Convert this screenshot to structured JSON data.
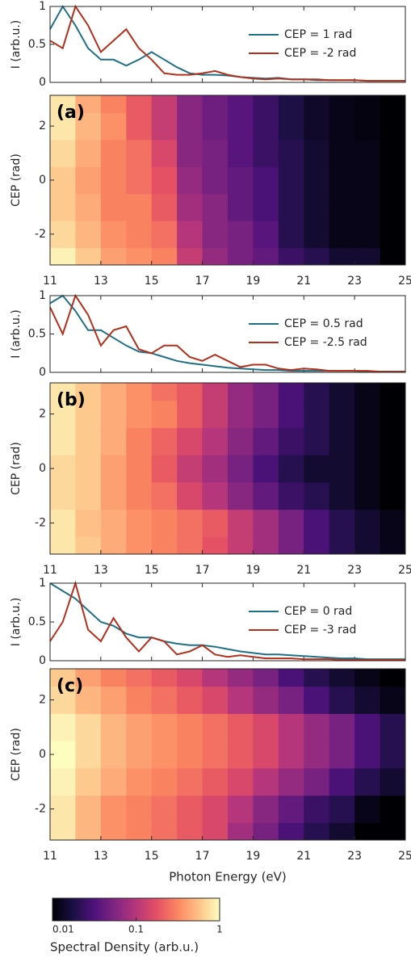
{
  "chart_data": [
    {
      "type": "line",
      "ylabel": "I (arb.u.)",
      "xlim": [
        11,
        25
      ],
      "ylim": [
        0,
        1
      ],
      "yticks": [
        0,
        0.5,
        1
      ],
      "legend": "upper right",
      "x": [
        11,
        11.5,
        12,
        12.5,
        13,
        13.5,
        14,
        14.5,
        15,
        15.5,
        16,
        16.5,
        17,
        17.5,
        18,
        18.5,
        19,
        19.5,
        20,
        20.5,
        21,
        21.5,
        22,
        22.5,
        23,
        23.5,
        24,
        24.5,
        25
      ],
      "series": [
        {
          "name": "CEP = 1 rad",
          "color": "#1f6f86",
          "values": [
            0.7,
            1.0,
            0.75,
            0.45,
            0.3,
            0.3,
            0.22,
            0.3,
            0.4,
            0.3,
            0.2,
            0.12,
            0.1,
            0.1,
            0.09,
            0.07,
            0.06,
            0.05,
            0.06,
            0.04,
            0.04,
            0.03,
            0.03,
            0.03,
            0.03,
            0.02,
            0.02,
            0.02,
            0.02
          ]
        },
        {
          "name": "CEP = -2 rad",
          "color": "#b3301c",
          "values": [
            0.55,
            0.45,
            1.0,
            0.75,
            0.4,
            0.55,
            0.7,
            0.45,
            0.3,
            0.12,
            0.1,
            0.1,
            0.12,
            0.15,
            0.1,
            0.07,
            0.05,
            0.04,
            0.05,
            0.04,
            0.04,
            0.04,
            0.03,
            0.03,
            0.03,
            0.02,
            0.02,
            0.02,
            0.02
          ]
        }
      ]
    },
    {
      "type": "heatmap",
      "label": "(a)",
      "ylabel": "CEP (rad)",
      "xlim": [
        11,
        25
      ],
      "xticks": [
        11,
        13,
        15,
        17,
        19,
        21,
        23,
        25
      ],
      "ylim": [
        -3.14,
        3.14
      ],
      "yticks": [
        -2,
        0,
        2
      ],
      "x": [
        11.5,
        12.5,
        13.5,
        14.5,
        15.5,
        16.5,
        17.5,
        18.5,
        19.5,
        20.5,
        21.5,
        22.5,
        23.5,
        24.5
      ],
      "y": [
        -3,
        -2,
        -1,
        0,
        1,
        2,
        3
      ],
      "z": [
        [
          0.9,
          0.6,
          0.4,
          0.35,
          0.3,
          0.12,
          0.07,
          0.05,
          0.04,
          0.025,
          0.02,
          0.015,
          0.015,
          0.01
        ],
        [
          0.7,
          0.5,
          0.35,
          0.3,
          0.25,
          0.1,
          0.06,
          0.05,
          0.035,
          0.02,
          0.015,
          0.012,
          0.012,
          0.01
        ],
        [
          0.6,
          0.45,
          0.3,
          0.3,
          0.2,
          0.08,
          0.06,
          0.04,
          0.03,
          0.02,
          0.015,
          0.012,
          0.012,
          0.01
        ],
        [
          0.6,
          0.4,
          0.3,
          0.25,
          0.18,
          0.07,
          0.05,
          0.04,
          0.03,
          0.02,
          0.015,
          0.012,
          0.012,
          0.01
        ],
        [
          0.7,
          0.45,
          0.3,
          0.25,
          0.15,
          0.06,
          0.05,
          0.035,
          0.025,
          0.02,
          0.015,
          0.012,
          0.012,
          0.01
        ],
        [
          0.8,
          0.5,
          0.35,
          0.2,
          0.12,
          0.06,
          0.045,
          0.035,
          0.025,
          0.018,
          0.014,
          0.012,
          0.011,
          0.01
        ],
        [
          0.8,
          0.45,
          0.3,
          0.2,
          0.12,
          0.06,
          0.045,
          0.035,
          0.025,
          0.018,
          0.014,
          0.012,
          0.011,
          0.01
        ]
      ]
    },
    {
      "type": "line",
      "ylabel": "I (arb.u.)",
      "xlim": [
        11,
        25
      ],
      "ylim": [
        0,
        1
      ],
      "yticks": [
        0,
        0.5,
        1
      ],
      "legend": "upper right",
      "x": [
        11,
        11.5,
        12,
        12.5,
        13,
        13.5,
        14,
        14.5,
        15,
        15.5,
        16,
        16.5,
        17,
        17.5,
        18,
        18.5,
        19,
        19.5,
        20,
        20.5,
        21,
        21.5,
        22,
        22.5,
        23,
        23.5,
        24,
        24.5,
        25
      ],
      "series": [
        {
          "name": "CEP = 0.5 rad",
          "color": "#1f6f86",
          "values": [
            0.9,
            1.0,
            0.8,
            0.55,
            0.55,
            0.45,
            0.35,
            0.27,
            0.25,
            0.2,
            0.15,
            0.12,
            0.1,
            0.08,
            0.06,
            0.05,
            0.04,
            0.03,
            0.03,
            0.02,
            0.02,
            0.02,
            0.02,
            0.02,
            0.02,
            0.01,
            0.01,
            0.01,
            0.01
          ]
        },
        {
          "name": "CEP = -2.5 rad",
          "color": "#b3301c",
          "values": [
            0.85,
            0.5,
            1.0,
            0.75,
            0.35,
            0.55,
            0.6,
            0.3,
            0.25,
            0.35,
            0.35,
            0.2,
            0.15,
            0.23,
            0.15,
            0.07,
            0.1,
            0.1,
            0.05,
            0.03,
            0.05,
            0.04,
            0.02,
            0.02,
            0.02,
            0.02,
            0.01,
            0.01,
            0.01
          ]
        }
      ]
    },
    {
      "type": "heatmap",
      "label": "(b)",
      "ylabel": "CEP (rad)",
      "xlim": [
        11,
        25
      ],
      "xticks": [
        11,
        13,
        15,
        17,
        19,
        21,
        23,
        25
      ],
      "ylim": [
        -3.14,
        3.14
      ],
      "yticks": [
        -2,
        0,
        2
      ],
      "x": [
        11.5,
        12.5,
        13.5,
        14.5,
        15.5,
        16.5,
        17.5,
        18.5,
        19.5,
        20.5,
        21.5,
        22.5,
        23.5,
        24.5
      ],
      "y": [
        -3,
        -2,
        -1,
        0,
        1,
        2,
        3
      ],
      "z": [
        [
          0.8,
          0.6,
          0.45,
          0.35,
          0.3,
          0.25,
          0.18,
          0.12,
          0.08,
          0.05,
          0.03,
          0.02,
          0.015,
          0.012
        ],
        [
          0.8,
          0.55,
          0.45,
          0.35,
          0.3,
          0.25,
          0.2,
          0.12,
          0.08,
          0.05,
          0.03,
          0.02,
          0.015,
          0.012
        ],
        [
          0.7,
          0.6,
          0.4,
          0.3,
          0.25,
          0.15,
          0.1,
          0.06,
          0.04,
          0.025,
          0.02,
          0.015,
          0.012,
          0.01
        ],
        [
          0.7,
          0.6,
          0.4,
          0.3,
          0.2,
          0.12,
          0.08,
          0.05,
          0.03,
          0.02,
          0.015,
          0.015,
          0.012,
          0.01
        ],
        [
          0.8,
          0.6,
          0.45,
          0.3,
          0.22,
          0.15,
          0.1,
          0.06,
          0.04,
          0.025,
          0.02,
          0.015,
          0.012,
          0.01
        ],
        [
          0.8,
          0.6,
          0.45,
          0.35,
          0.3,
          0.2,
          0.12,
          0.07,
          0.05,
          0.03,
          0.02,
          0.015,
          0.012,
          0.01
        ],
        [
          0.8,
          0.6,
          0.45,
          0.35,
          0.25,
          0.2,
          0.12,
          0.07,
          0.05,
          0.03,
          0.02,
          0.015,
          0.012,
          0.01
        ]
      ]
    },
    {
      "type": "line",
      "ylabel": "I (arb.u.)",
      "xlim": [
        11,
        25
      ],
      "ylim": [
        0,
        1
      ],
      "yticks": [
        0,
        0.5,
        1
      ],
      "legend": "upper right",
      "x": [
        11,
        11.5,
        12,
        12.5,
        13,
        13.5,
        14,
        14.5,
        15,
        15.5,
        16,
        16.5,
        17,
        17.5,
        18,
        18.5,
        19,
        19.5,
        20,
        20.5,
        21,
        21.5,
        22,
        22.5,
        23,
        23.5,
        24,
        24.5,
        25
      ],
      "series": [
        {
          "name": "CEP = 0 rad",
          "color": "#1f6f86",
          "values": [
            1.0,
            0.9,
            0.8,
            0.65,
            0.5,
            0.45,
            0.35,
            0.3,
            0.3,
            0.25,
            0.22,
            0.2,
            0.2,
            0.18,
            0.15,
            0.12,
            0.1,
            0.08,
            0.08,
            0.07,
            0.06,
            0.05,
            0.04,
            0.03,
            0.03,
            0.02,
            0.02,
            0.02,
            0.02
          ]
        },
        {
          "name": "CEP = -3 rad",
          "color": "#b3301c",
          "values": [
            0.25,
            0.5,
            1.0,
            0.4,
            0.25,
            0.55,
            0.3,
            0.12,
            0.3,
            0.25,
            0.08,
            0.12,
            0.2,
            0.08,
            0.05,
            0.07,
            0.05,
            0.03,
            0.03,
            0.03,
            0.02,
            0.02,
            0.02,
            0.01,
            0.01,
            0.01,
            0.01,
            0.01,
            0.01
          ]
        }
      ]
    },
    {
      "type": "heatmap",
      "label": "(c)",
      "ylabel": "CEP (rad)",
      "xlabel": "Photon Energy (eV)",
      "xlim": [
        11,
        25
      ],
      "xticks": [
        11,
        13,
        15,
        17,
        19,
        21,
        23,
        25
      ],
      "ylim": [
        -3.14,
        3.14
      ],
      "yticks": [
        -2,
        0,
        2
      ],
      "x": [
        11.5,
        12.5,
        13.5,
        14.5,
        15.5,
        16.5,
        17.5,
        18.5,
        19.5,
        20.5,
        21.5,
        22.5,
        23.5,
        24.5
      ],
      "y": [
        -3,
        -2,
        -1,
        0,
        1,
        2,
        3
      ],
      "z": [
        [
          0.8,
          0.5,
          0.35,
          0.3,
          0.25,
          0.2,
          0.15,
          0.08,
          0.05,
          0.03,
          0.02,
          0.015,
          0.01,
          0.01
        ],
        [
          0.8,
          0.5,
          0.35,
          0.3,
          0.25,
          0.2,
          0.15,
          0.1,
          0.06,
          0.04,
          0.025,
          0.02,
          0.012,
          0.01
        ],
        [
          0.9,
          0.6,
          0.45,
          0.35,
          0.3,
          0.25,
          0.2,
          0.15,
          0.1,
          0.07,
          0.05,
          0.03,
          0.02,
          0.015
        ],
        [
          1,
          0.7,
          0.5,
          0.4,
          0.35,
          0.3,
          0.25,
          0.2,
          0.15,
          0.1,
          0.07,
          0.05,
          0.03,
          0.02
        ],
        [
          0.9,
          0.7,
          0.5,
          0.4,
          0.35,
          0.3,
          0.25,
          0.2,
          0.15,
          0.1,
          0.07,
          0.05,
          0.03,
          0.02
        ],
        [
          0.7,
          0.5,
          0.4,
          0.3,
          0.25,
          0.2,
          0.15,
          0.1,
          0.07,
          0.05,
          0.03,
          0.02,
          0.015,
          0.012
        ],
        [
          0.6,
          0.4,
          0.3,
          0.25,
          0.2,
          0.15,
          0.1,
          0.07,
          0.05,
          0.03,
          0.02,
          0.015,
          0.012,
          0.01
        ]
      ]
    },
    {
      "type": "colorbar",
      "label": "Spectral Density (arb.u.)",
      "log": true,
      "lim": [
        0.01,
        1
      ],
      "ticks": [
        0.01,
        0.1,
        1
      ],
      "colormap": [
        "#000004",
        "#1c1044",
        "#4f127b",
        "#812581",
        "#b5367a",
        "#e55064",
        "#fb8761",
        "#fec287",
        "#fcfdbf"
      ]
    }
  ]
}
